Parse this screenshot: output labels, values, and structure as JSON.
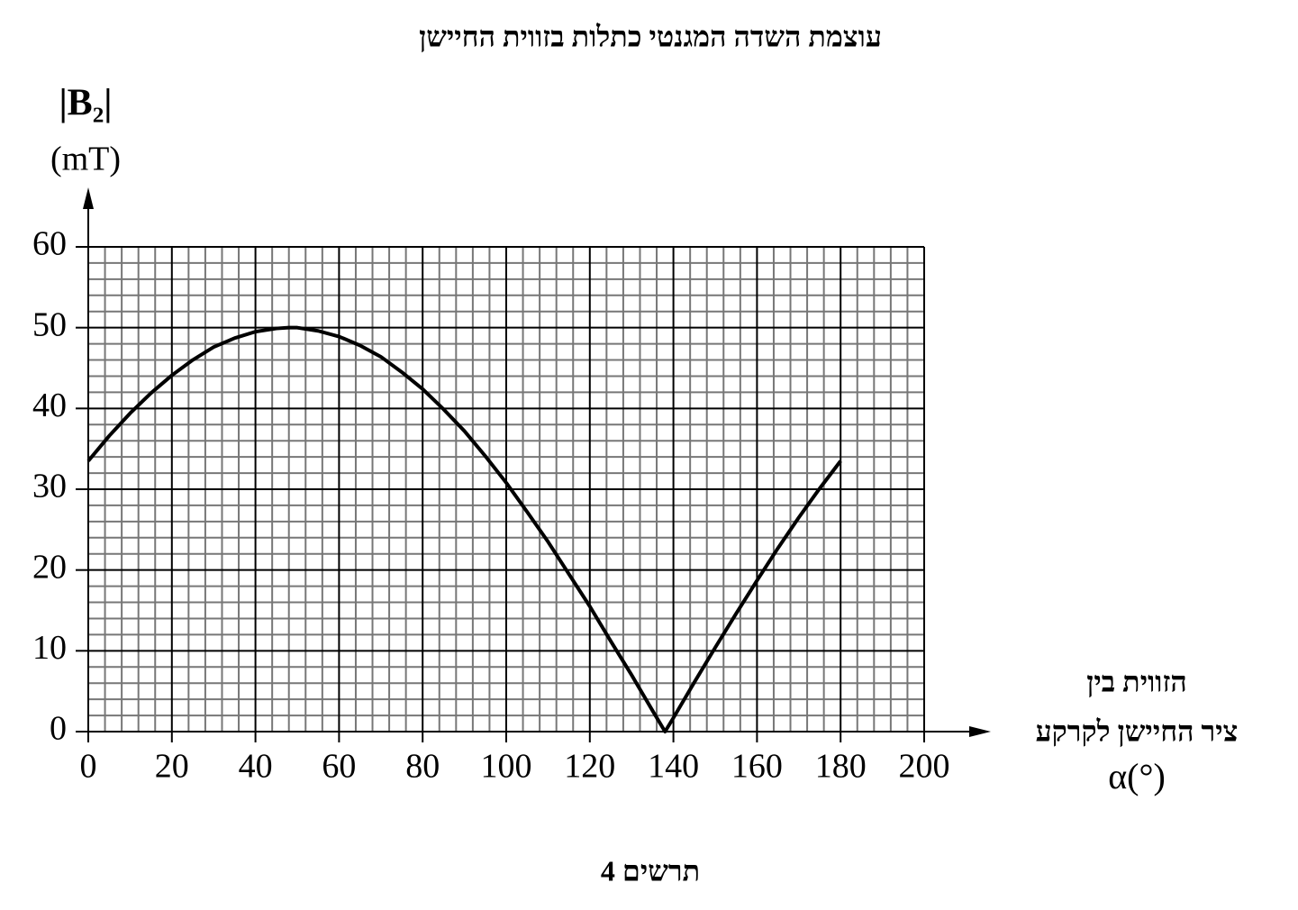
{
  "chart_data": {
    "type": "line",
    "title": "עוצמת השדה המגנטי כתלות בזווית החיישן",
    "ylabel": "|B₂|",
    "yunit": "(mT)",
    "xlabel": [
      "הזווית בין",
      "ציר החיישן לקרקע",
      "α(°)"
    ],
    "caption": "תרשים 4",
    "x": [
      0,
      5,
      10,
      15,
      20,
      25,
      30,
      35,
      40,
      45,
      48,
      50,
      55,
      60,
      65,
      70,
      75,
      80,
      85,
      90,
      95,
      100,
      105,
      110,
      115,
      120,
      125,
      130,
      135,
      138,
      140,
      145,
      150,
      155,
      160,
      165,
      170,
      175,
      180
    ],
    "series": [
      {
        "color": "#000000",
        "values": [
          33.5,
          36.6,
          39.4,
          41.9,
          44.1,
          46.0,
          47.6,
          48.7,
          49.5,
          49.9,
          50.0,
          50.0,
          49.6,
          48.9,
          47.8,
          46.4,
          44.5,
          42.4,
          39.9,
          37.2,
          34.1,
          30.8,
          27.2,
          23.5,
          19.5,
          15.5,
          11.2,
          7.0,
          2.6,
          0,
          1.7,
          6.1,
          10.4,
          14.6,
          18.7,
          22.7,
          26.5,
          30.1,
          33.5
        ]
      }
    ],
    "xlim": [
      0,
      200
    ],
    "ylim": [
      0,
      60
    ],
    "xticks": [
      0,
      20,
      40,
      60,
      80,
      100,
      120,
      140,
      160,
      180,
      200
    ],
    "yticks": [
      0,
      10,
      20,
      30,
      40,
      50,
      60
    ],
    "grid": true,
    "minor_grid_divisions": 5
  }
}
